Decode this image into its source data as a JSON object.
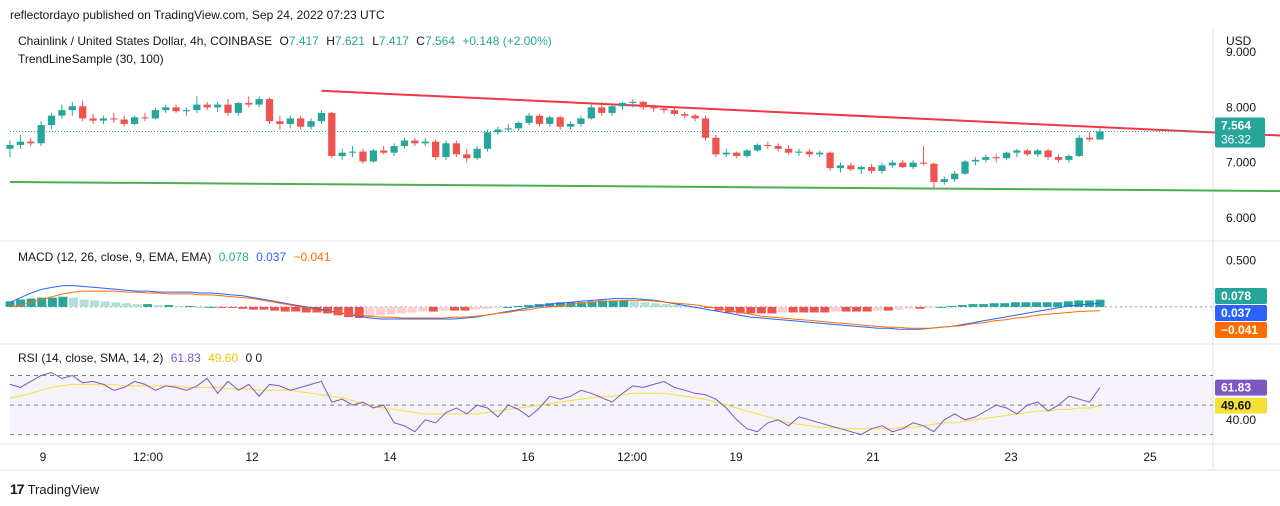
{
  "caption": "reflectordayo published on TradingView.com, Sep 24, 2022 07:23 UTC",
  "footer": {
    "brand": "TradingView",
    "logo_glyph": "17"
  },
  "colors": {
    "up": "#26a69a",
    "down": "#ef5350",
    "trendline_upper": "#f23645",
    "trendline_lower": "#4caf50",
    "macd_line": "#2962ff",
    "signal_line": "#ff6d00",
    "rsi_line": "#7e57c2",
    "rsi_ma": "#f5e03a",
    "axis_text": "#131722",
    "grid": "#e0e3eb"
  },
  "price_panel": {
    "symbol": "Chainlink / United States Dollar, 4h, COINBASE",
    "ohlc": {
      "o_label": "O",
      "o": "7.417",
      "h_label": "H",
      "h": "7.621",
      "l_label": "L",
      "l": "7.417",
      "c_label": "C",
      "c": "7.564",
      "change": "+0.148 (+2.00%)"
    },
    "indicator": "TrendLineSample (30, 100)",
    "currency": "USD",
    "price_badge": "7.564",
    "countdown": "36:32"
  },
  "macd_panel": {
    "title": "MACD (12, 26, close, 9, EMA, EMA)",
    "hist_value": "0.078",
    "macd_value": "0.037",
    "signal_value": "−0.041",
    "badges": [
      "0.078",
      "0.037",
      "−0.041"
    ]
  },
  "rsi_panel": {
    "title": "RSI (14, close, SMA, 14, 2)",
    "rsi_value": "61.83",
    "ma_value": "49.60",
    "extra": "0 0",
    "badges": [
      "61.83",
      "49.60"
    ]
  },
  "chart_data": [
    {
      "type": "candlestick",
      "name": "price",
      "ylim": [
        5.6,
        9.4
      ],
      "y_ticks": [
        9.0,
        8.0,
        7.0,
        6.0
      ],
      "y_tick_labels": [
        "9.000",
        "8.000",
        "7.000",
        "6.000"
      ],
      "x_tick_labels": [
        "9",
        "12:00",
        "12",
        "14",
        "16",
        "12:00",
        "19",
        "21",
        "23",
        "25"
      ],
      "last_price": 7.564,
      "candles": [
        [
          7.25,
          7.4,
          7.1,
          7.32
        ],
        [
          7.32,
          7.5,
          7.25,
          7.38
        ],
        [
          7.38,
          7.45,
          7.3,
          7.35
        ],
        [
          7.35,
          7.75,
          7.3,
          7.68
        ],
        [
          7.68,
          7.9,
          7.6,
          7.85
        ],
        [
          7.85,
          8.05,
          7.8,
          7.95
        ],
        [
          7.95,
          8.1,
          7.85,
          8.02
        ],
        [
          8.02,
          8.12,
          7.75,
          7.8
        ],
        [
          7.8,
          7.88,
          7.7,
          7.76
        ],
        [
          7.76,
          7.85,
          7.7,
          7.8
        ],
        [
          7.8,
          7.9,
          7.72,
          7.78
        ],
        [
          7.78,
          7.85,
          7.65,
          7.7
        ],
        [
          7.7,
          7.85,
          7.68,
          7.82
        ],
        [
          7.82,
          7.9,
          7.75,
          7.8
        ],
        [
          7.8,
          8.0,
          7.78,
          7.95
        ],
        [
          7.95,
          8.05,
          7.9,
          8.0
        ],
        [
          8.0,
          8.05,
          7.9,
          7.93
        ],
        [
          7.93,
          8.0,
          7.85,
          7.95
        ],
        [
          7.95,
          8.2,
          7.9,
          8.05
        ],
        [
          8.05,
          8.1,
          7.95,
          8.0
        ],
        [
          8.0,
          8.1,
          7.92,
          8.05
        ],
        [
          8.05,
          8.15,
          7.85,
          7.9
        ],
        [
          7.9,
          8.1,
          7.85,
          8.08
        ],
        [
          8.08,
          8.2,
          8.0,
          8.05
        ],
        [
          8.05,
          8.2,
          8.0,
          8.15
        ],
        [
          8.15,
          8.18,
          7.7,
          7.75
        ],
        [
          7.75,
          7.85,
          7.6,
          7.7
        ],
        [
          7.7,
          7.85,
          7.62,
          7.8
        ],
        [
          7.8,
          7.85,
          7.6,
          7.65
        ],
        [
          7.65,
          7.8,
          7.6,
          7.75
        ],
        [
          7.75,
          7.95,
          7.7,
          7.9
        ],
        [
          7.9,
          7.92,
          7.08,
          7.12
        ],
        [
          7.12,
          7.25,
          7.05,
          7.18
        ],
        [
          7.18,
          7.3,
          7.1,
          7.2
        ],
        [
          7.2,
          7.25,
          6.98,
          7.02
        ],
        [
          7.02,
          7.25,
          7.0,
          7.22
        ],
        [
          7.22,
          7.3,
          7.15,
          7.18
        ],
        [
          7.18,
          7.35,
          7.12,
          7.3
        ],
        [
          7.3,
          7.45,
          7.25,
          7.4
        ],
        [
          7.4,
          7.45,
          7.3,
          7.35
        ],
        [
          7.35,
          7.45,
          7.3,
          7.38
        ],
        [
          7.38,
          7.42,
          7.05,
          7.1
        ],
        [
          7.1,
          7.4,
          7.05,
          7.35
        ],
        [
          7.35,
          7.4,
          7.1,
          7.15
        ],
        [
          7.15,
          7.25,
          7.0,
          7.08
        ],
        [
          7.08,
          7.3,
          7.05,
          7.25
        ],
        [
          7.25,
          7.6,
          7.2,
          7.55
        ],
        [
          7.55,
          7.65,
          7.5,
          7.6
        ],
        [
          7.6,
          7.7,
          7.55,
          7.62
        ],
        [
          7.62,
          7.75,
          7.58,
          7.72
        ],
        [
          7.72,
          7.9,
          7.68,
          7.85
        ],
        [
          7.85,
          7.88,
          7.65,
          7.7
        ],
        [
          7.7,
          7.85,
          7.65,
          7.82
        ],
        [
          7.82,
          7.85,
          7.6,
          7.65
        ],
        [
          7.65,
          7.75,
          7.6,
          7.7
        ],
        [
          7.7,
          7.85,
          7.65,
          7.8
        ],
        [
          7.8,
          8.05,
          7.78,
          8.0
        ],
        [
          8.0,
          8.1,
          7.85,
          7.9
        ],
        [
          7.9,
          8.05,
          7.85,
          8.02
        ],
        [
          8.02,
          8.1,
          7.95,
          8.08
        ],
        [
          8.08,
          8.15,
          8.0,
          8.1
        ],
        [
          8.1,
          8.12,
          7.95,
          8.0
        ],
        [
          8.0,
          8.05,
          7.92,
          7.98
        ],
        [
          7.98,
          8.02,
          7.9,
          7.95
        ],
        [
          7.95,
          8.0,
          7.85,
          7.88
        ],
        [
          7.88,
          7.92,
          7.8,
          7.85
        ],
        [
          7.85,
          7.88,
          7.75,
          7.8
        ],
        [
          7.8,
          7.85,
          7.4,
          7.45
        ],
        [
          7.45,
          7.5,
          7.1,
          7.15
        ],
        [
          7.15,
          7.25,
          7.1,
          7.18
        ],
        [
          7.18,
          7.2,
          7.08,
          7.12
        ],
        [
          7.12,
          7.25,
          7.08,
          7.22
        ],
        [
          7.22,
          7.35,
          7.2,
          7.32
        ],
        [
          7.32,
          7.38,
          7.25,
          7.3
        ],
        [
          7.3,
          7.35,
          7.2,
          7.25
        ],
        [
          7.25,
          7.32,
          7.15,
          7.18
        ],
        [
          7.18,
          7.25,
          7.12,
          7.2
        ],
        [
          7.2,
          7.25,
          7.1,
          7.15
        ],
        [
          7.15,
          7.22,
          7.1,
          7.18
        ],
        [
          7.18,
          7.2,
          6.85,
          6.9
        ],
        [
          6.9,
          7.0,
          6.82,
          6.95
        ],
        [
          6.95,
          7.0,
          6.85,
          6.88
        ],
        [
          6.88,
          6.95,
          6.8,
          6.92
        ],
        [
          6.92,
          6.98,
          6.8,
          6.85
        ],
        [
          6.85,
          7.0,
          6.8,
          6.95
        ],
        [
          6.95,
          7.05,
          6.9,
          7.0
        ],
        [
          7.0,
          7.05,
          6.9,
          6.92
        ],
        [
          6.92,
          7.05,
          6.88,
          7.0
        ],
        [
          7.0,
          7.3,
          6.95,
          6.98
        ],
        [
          6.98,
          7.0,
          6.55,
          6.65
        ],
        [
          6.65,
          6.75,
          6.6,
          6.7
        ],
        [
          6.7,
          6.85,
          6.65,
          6.8
        ],
        [
          6.8,
          7.05,
          6.78,
          7.02
        ],
        [
          7.02,
          7.1,
          6.95,
          7.05
        ],
        [
          7.05,
          7.15,
          7.0,
          7.1
        ],
        [
          7.1,
          7.15,
          7.0,
          7.08
        ],
        [
          7.08,
          7.2,
          7.05,
          7.18
        ],
        [
          7.18,
          7.25,
          7.1,
          7.22
        ],
        [
          7.22,
          7.25,
          7.12,
          7.15
        ],
        [
          7.15,
          7.25,
          7.1,
          7.22
        ],
        [
          7.22,
          7.25,
          7.05,
          7.1
        ],
        [
          7.1,
          7.15,
          7.0,
          7.05
        ],
        [
          7.05,
          7.15,
          7.0,
          7.12
        ],
        [
          7.12,
          7.5,
          7.1,
          7.45
        ],
        [
          7.45,
          7.55,
          7.38,
          7.42
        ],
        [
          7.417,
          7.621,
          7.417,
          7.564
        ]
      ],
      "trendlines": [
        {
          "name": "upper",
          "from": {
            "index": 30,
            "price": 8.3
          },
          "to": {
            "index": 127,
            "price": 7.45
          }
        },
        {
          "name": "lower",
          "from": {
            "index": 0,
            "price": 6.65
          },
          "to": {
            "index": 127,
            "price": 6.48
          }
        }
      ]
    },
    {
      "type": "line",
      "name": "macd",
      "ylim": [
        -0.4,
        0.7
      ],
      "y_ticks": [
        0.5
      ],
      "y_tick_labels": [
        "0.500"
      ],
      "zero_line": true,
      "histogram": [
        0.06,
        0.08,
        0.09,
        0.1,
        0.1,
        0.11,
        0.1,
        0.08,
        0.07,
        0.06,
        0.05,
        0.04,
        0.03,
        0.03,
        0.02,
        0.02,
        0.01,
        0.01,
        0.0,
        0.0,
        -0.01,
        -0.01,
        -0.02,
        -0.03,
        -0.03,
        -0.04,
        -0.05,
        -0.05,
        -0.06,
        -0.06,
        -0.07,
        -0.09,
        -0.11,
        -0.12,
        -0.11,
        -0.09,
        -0.08,
        -0.07,
        -0.06,
        -0.05,
        -0.05,
        -0.04,
        -0.04,
        -0.04,
        -0.03,
        -0.02,
        -0.01,
        0.0,
        0.01,
        0.02,
        0.03,
        0.04,
        0.05,
        0.05,
        0.05,
        0.06,
        0.07,
        0.07,
        0.07,
        0.06,
        0.05,
        0.04,
        0.03,
        0.02,
        0.01,
        0.0,
        -0.01,
        -0.04,
        -0.06,
        -0.07,
        -0.07,
        -0.07,
        -0.07,
        -0.06,
        -0.06,
        -0.06,
        -0.06,
        -0.06,
        -0.05,
        -0.05,
        -0.05,
        -0.05,
        -0.04,
        -0.04,
        -0.03,
        -0.02,
        -0.02,
        -0.01,
        0.0,
        0.01,
        0.02,
        0.03,
        0.03,
        0.04,
        0.04,
        0.05,
        0.05,
        0.05,
        0.05,
        0.05,
        0.06,
        0.07,
        0.07,
        0.078
      ],
      "macd": [
        0.05,
        0.1,
        0.15,
        0.19,
        0.21,
        0.23,
        0.23,
        0.22,
        0.21,
        0.2,
        0.19,
        0.18,
        0.17,
        0.17,
        0.16,
        0.16,
        0.16,
        0.16,
        0.15,
        0.15,
        0.14,
        0.13,
        0.12,
        0.1,
        0.08,
        0.06,
        0.04,
        0.02,
        0.0,
        -0.02,
        -0.04,
        -0.06,
        -0.08,
        -0.1,
        -0.12,
        -0.13,
        -0.13,
        -0.13,
        -0.13,
        -0.13,
        -0.13,
        -0.13,
        -0.13,
        -0.12,
        -0.11,
        -0.09,
        -0.07,
        -0.05,
        -0.03,
        -0.01,
        0.01,
        0.03,
        0.04,
        0.05,
        0.06,
        0.07,
        0.08,
        0.09,
        0.09,
        0.09,
        0.08,
        0.07,
        0.05,
        0.03,
        0.01,
        -0.01,
        -0.03,
        -0.05,
        -0.07,
        -0.09,
        -0.11,
        -0.12,
        -0.13,
        -0.14,
        -0.15,
        -0.16,
        -0.17,
        -0.18,
        -0.19,
        -0.2,
        -0.21,
        -0.22,
        -0.23,
        -0.23,
        -0.24,
        -0.24,
        -0.24,
        -0.23,
        -0.22,
        -0.21,
        -0.19,
        -0.17,
        -0.15,
        -0.13,
        -0.11,
        -0.09,
        -0.07,
        -0.05,
        -0.03,
        -0.01,
        0.01,
        0.02,
        0.03,
        0.037
      ],
      "signal": [
        0.0,
        0.02,
        0.05,
        0.08,
        0.11,
        0.14,
        0.16,
        0.17,
        0.17,
        0.17,
        0.17,
        0.16,
        0.16,
        0.15,
        0.15,
        0.14,
        0.14,
        0.14,
        0.13,
        0.13,
        0.12,
        0.11,
        0.1,
        0.09,
        0.07,
        0.05,
        0.03,
        0.01,
        -0.01,
        -0.03,
        -0.05,
        -0.06,
        -0.08,
        -0.09,
        -0.1,
        -0.11,
        -0.11,
        -0.12,
        -0.12,
        -0.12,
        -0.12,
        -0.12,
        -0.11,
        -0.11,
        -0.1,
        -0.09,
        -0.07,
        -0.06,
        -0.04,
        -0.03,
        -0.01,
        0.0,
        0.01,
        0.03,
        0.04,
        0.05,
        0.06,
        0.06,
        0.07,
        0.07,
        0.07,
        0.06,
        0.05,
        0.04,
        0.03,
        0.02,
        0.0,
        -0.02,
        -0.04,
        -0.06,
        -0.08,
        -0.1,
        -0.11,
        -0.12,
        -0.13,
        -0.14,
        -0.15,
        -0.16,
        -0.17,
        -0.18,
        -0.19,
        -0.2,
        -0.21,
        -0.22,
        -0.22,
        -0.23,
        -0.23,
        -0.23,
        -0.22,
        -0.21,
        -0.2,
        -0.18,
        -0.17,
        -0.15,
        -0.14,
        -0.12,
        -0.11,
        -0.09,
        -0.08,
        -0.07,
        -0.06,
        -0.05,
        -0.045,
        -0.041
      ]
    },
    {
      "type": "line",
      "name": "rsi",
      "ylim": [
        25,
        90
      ],
      "y_ticks": [
        40
      ],
      "y_tick_labels": [
        "40.00"
      ],
      "bands": [
        30,
        50,
        70
      ],
      "rsi": [
        64,
        62,
        66,
        70,
        72,
        68,
        70,
        65,
        66,
        64,
        60,
        62,
        66,
        64,
        60,
        63,
        62,
        60,
        63,
        68,
        58,
        66,
        60,
        64,
        56,
        64,
        63,
        60,
        62,
        64,
        66,
        52,
        54,
        50,
        52,
        48,
        50,
        38,
        36,
        32,
        40,
        38,
        45,
        48,
        44,
        50,
        48,
        42,
        50,
        47,
        42,
        48,
        56,
        54,
        56,
        60,
        58,
        55,
        52,
        58,
        63,
        62,
        64,
        66,
        62,
        60,
        58,
        57,
        54,
        48,
        40,
        34,
        32,
        38,
        40,
        36,
        42,
        40,
        38,
        36,
        34,
        32,
        30,
        34,
        36,
        32,
        34,
        38,
        36,
        32,
        40,
        44,
        40,
        42,
        46,
        50,
        48,
        44,
        50,
        52,
        46,
        50,
        56,
        54,
        52,
        61.83
      ],
      "rsi_ma": [
        55,
        56,
        58,
        60,
        62,
        63,
        64,
        64,
        64,
        64,
        64,
        63,
        63,
        63,
        63,
        63,
        63,
        62,
        62,
        62,
        62,
        61,
        61,
        61,
        60,
        60,
        60,
        60,
        59,
        58,
        57,
        56,
        55,
        53,
        51,
        49,
        48,
        47,
        46,
        45,
        44,
        44,
        44,
        44,
        44,
        44,
        45,
        46,
        47,
        48,
        49,
        50,
        51,
        52,
        53,
        54,
        55,
        56,
        56,
        57,
        58,
        58,
        58,
        58,
        57,
        56,
        55,
        54,
        52,
        50,
        48,
        46,
        44,
        42,
        40,
        38,
        37,
        36,
        35,
        35,
        34,
        34,
        34,
        34,
        34,
        34,
        35,
        35,
        36,
        37,
        38,
        38,
        39,
        40,
        41,
        42,
        43,
        44,
        45,
        46,
        46,
        47,
        47,
        48,
        48,
        49.6
      ]
    }
  ]
}
